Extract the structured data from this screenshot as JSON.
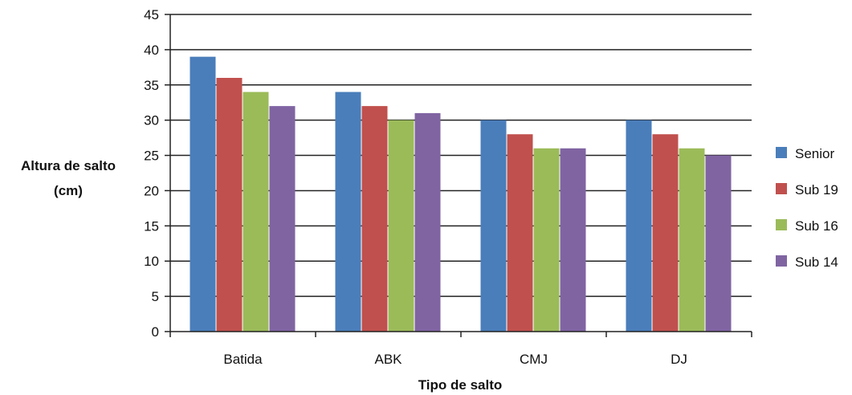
{
  "chart_data": {
    "type": "bar",
    "title": "",
    "xlabel": "Tipo de salto",
    "ylabel_lines": [
      "Altura de salto",
      "(cm)"
    ],
    "categories": [
      "Batida",
      "ABK",
      "CMJ",
      "DJ"
    ],
    "series": [
      {
        "name": "Senior",
        "color": "#4a7ebb",
        "values": [
          39,
          34,
          30,
          30
        ]
      },
      {
        "name": "Sub 19",
        "color": "#c0504d",
        "values": [
          36,
          32,
          28,
          28
        ]
      },
      {
        "name": "Sub 16",
        "color": "#9bbb59",
        "values": [
          34,
          30,
          26,
          26
        ]
      },
      {
        "name": "Sub 14",
        "color": "#8064a2",
        "values": [
          32,
          31,
          26,
          25
        ]
      }
    ],
    "ylim": [
      0,
      45
    ],
    "yticks": [
      "0",
      "5",
      "10",
      "15",
      "20",
      "25",
      "30",
      "35",
      "40",
      "45"
    ],
    "grid": true,
    "legend_position": "right"
  }
}
